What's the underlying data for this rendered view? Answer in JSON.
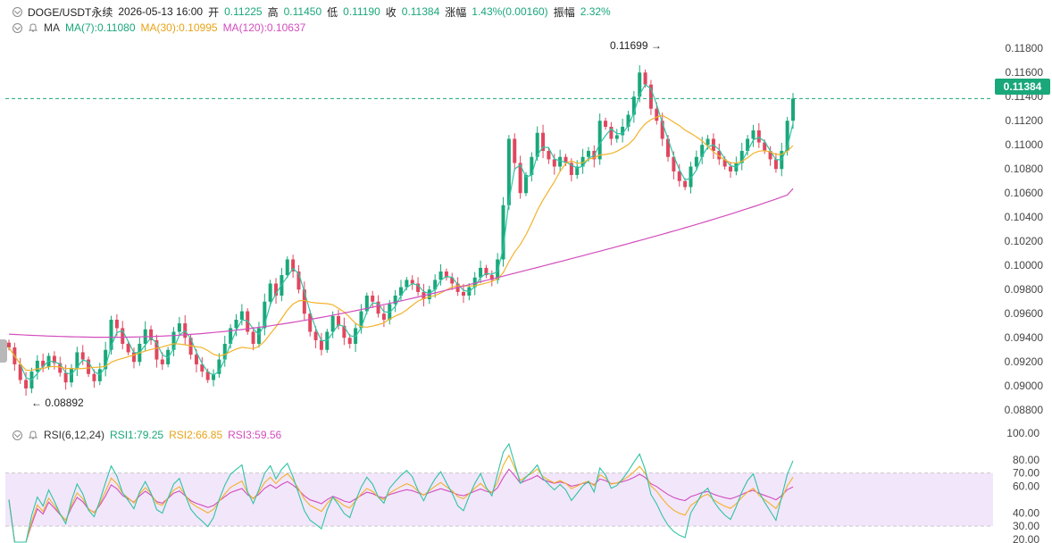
{
  "header": {
    "symbol": "DOGE/USDT永续",
    "datetime": "2026-05-13 16:00",
    "open_label": "开",
    "open": "0.11225",
    "high_label": "高",
    "high": "0.11450",
    "low_label": "低",
    "low": "0.11190",
    "close_label": "收",
    "close": "0.11384",
    "change_label": "涨幅",
    "change": "1.43%(0.00160)",
    "amplitude_label": "振幅",
    "amplitude": "2.32%"
  },
  "ma_legend": {
    "title": "MA",
    "ma7": "MA(7):0.11080",
    "ma30": "MA(30):0.10995",
    "ma120": "MA(120):0.10637"
  },
  "rsi_legend": {
    "title": "RSI(6,12,24)",
    "rsi1": "RSI1:79.25",
    "rsi2": "RSI2:66.85",
    "rsi3": "RSI3:59.56"
  },
  "price_tag": "0.11384",
  "annotations": {
    "max_label": "0.11699",
    "min_label": "0.08892"
  },
  "colors": {
    "up": "#1aa77a",
    "down": "#e0475e",
    "ma7": "#2ec4a4",
    "ma30": "#f3b22a",
    "ma120": "#d24dbc",
    "rsi_band": "#f2e6fb"
  },
  "chart_data": [
    {
      "type": "candlestick",
      "price_axis_ticks": [
        "0.11800",
        "0.11600",
        "0.11400",
        "0.11200",
        "0.11000",
        "0.10800",
        "0.10600",
        "0.10400",
        "0.10200",
        "0.10000",
        "0.09800",
        "0.09600",
        "0.09400",
        "0.09200",
        "0.09000",
        "0.08800"
      ],
      "ylim": [
        0.0875,
        0.1192
      ],
      "last_price": 0.11384,
      "max": 0.11699,
      "min": 0.08892,
      "close": [
        0.0932,
        0.0918,
        0.0905,
        0.0898,
        0.0912,
        0.0921,
        0.0916,
        0.0925,
        0.0919,
        0.0911,
        0.0903,
        0.0915,
        0.0928,
        0.0922,
        0.091,
        0.0904,
        0.0914,
        0.093,
        0.0955,
        0.0948,
        0.0935,
        0.0928,
        0.092,
        0.0935,
        0.0947,
        0.0938,
        0.0922,
        0.0918,
        0.093,
        0.0945,
        0.0952,
        0.094,
        0.0926,
        0.0918,
        0.0912,
        0.0905,
        0.091,
        0.0922,
        0.0935,
        0.0948,
        0.0955,
        0.0962,
        0.0945,
        0.0935,
        0.0948,
        0.097,
        0.0985,
        0.0975,
        0.0992,
        0.1005,
        0.0995,
        0.098,
        0.096,
        0.0945,
        0.0938,
        0.093,
        0.0945,
        0.0958,
        0.095,
        0.094,
        0.0935,
        0.0948,
        0.0962,
        0.0975,
        0.097,
        0.096,
        0.0955,
        0.0968,
        0.0975,
        0.0982,
        0.0988,
        0.0985,
        0.0978,
        0.0972,
        0.098,
        0.0988,
        0.0995,
        0.099,
        0.0985,
        0.0978,
        0.0975,
        0.0982,
        0.099,
        0.0998,
        0.0992,
        0.0988,
        0.1005,
        0.105,
        0.1105,
        0.1085,
        0.106,
        0.1075,
        0.109,
        0.111,
        0.1095,
        0.1088,
        0.1082,
        0.109,
        0.1085,
        0.1075,
        0.1082,
        0.109,
        0.1095,
        0.1088,
        0.112,
        0.1115,
        0.1105,
        0.1108,
        0.1115,
        0.1125,
        0.114,
        0.116,
        0.115,
        0.113,
        0.112,
        0.1105,
        0.109,
        0.1078,
        0.107,
        0.1065,
        0.1082,
        0.109,
        0.11,
        0.1105,
        0.1095,
        0.1088,
        0.1082,
        0.1078,
        0.1085,
        0.1095,
        0.1105,
        0.1112,
        0.1102,
        0.1095,
        0.1088,
        0.108,
        0.1095,
        0.112,
        0.11384
      ],
      "ma_last": {
        "ma7": 0.1108,
        "ma30": 0.10995,
        "ma120": 0.10637
      }
    },
    {
      "type": "line",
      "title": "RSI(6,12,24)",
      "axis_ticks": [
        "100.00",
        "80.00",
        "70.00",
        "60.00",
        "40.00",
        "30.00",
        "20.00"
      ],
      "ylim": [
        20,
        100
      ],
      "band": [
        30,
        70
      ],
      "last": {
        "rsi1": 79.25,
        "rsi2": 66.85,
        "rsi3": 59.56
      }
    }
  ]
}
